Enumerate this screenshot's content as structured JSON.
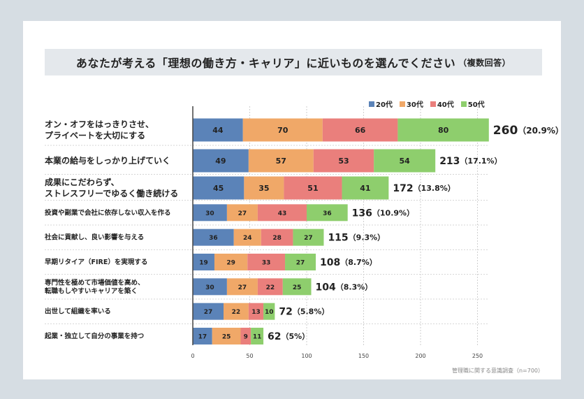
{
  "title": "あなたが考える「理想の働き方・キャリア」に近いものを選んでください",
  "title_note": "（複数回答）",
  "source": "管理職に関する意識調査（n=700）",
  "chart_data": {
    "type": "bar",
    "orientation": "horizontal",
    "stacked": true,
    "categories": [
      [
        "オン・オフをはっきりさせ、",
        "プライベートを大切にする"
      ],
      [
        "本業の給与をしっかり上げていく"
      ],
      [
        "成果にこだわらず、",
        "ストレスフリーでゆるく働き続ける"
      ],
      [
        "投資や副業で会社に依存しない収入を作る"
      ],
      [
        "社会に貢献し、良い影響を与える"
      ],
      [
        "早期リタイア（FIRE）を実現する"
      ],
      [
        "専門性を極めて市場価値を高め、",
        "転職もしやすいキャリアを築く"
      ],
      [
        "出世して組織を率いる"
      ],
      [
        "起業・独立して自分の事業を持つ"
      ]
    ],
    "series": [
      {
        "name": "20代",
        "color": "#5b83b8",
        "values": [
          44,
          49,
          45,
          30,
          36,
          19,
          30,
          27,
          17
        ]
      },
      {
        "name": "30代",
        "color": "#f0a868",
        "values": [
          70,
          57,
          35,
          27,
          24,
          29,
          27,
          22,
          25
        ]
      },
      {
        "name": "40代",
        "color": "#ea7f7c",
        "values": [
          66,
          53,
          51,
          43,
          28,
          33,
          22,
          13,
          9
        ]
      },
      {
        "name": "50代",
        "color": "#8ece6d",
        "values": [
          80,
          54,
          41,
          36,
          27,
          27,
          25,
          10,
          11
        ]
      }
    ],
    "totals": [
      "260",
      "213",
      "172",
      "136",
      "115",
      "108",
      "104",
      "72",
      "62"
    ],
    "shares": [
      "（20.9%）",
      "（17.1%）",
      "（13.8%）",
      "（10.9%）",
      "（9.3%）",
      "（8.7%）",
      "（8.3%）",
      "（5.8%）",
      "（5%）"
    ],
    "xticks": [
      0,
      50,
      100,
      150,
      200,
      250
    ],
    "xlim": [
      0,
      260
    ],
    "grid": true,
    "legend_position": "top-right"
  }
}
